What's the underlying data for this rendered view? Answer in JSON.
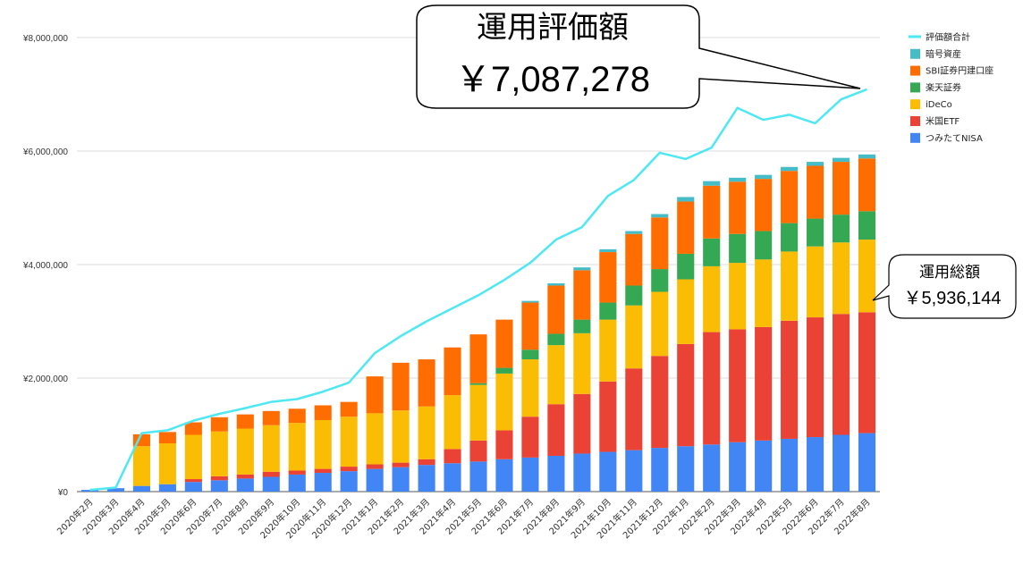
{
  "chart_data": {
    "type": "bar",
    "stacked": true,
    "ylim": [
      0,
      8000000
    ],
    "yticks": [
      "¥0",
      "¥2,000,000",
      "¥4,000,000",
      "¥6,000,000",
      "¥8,000,000"
    ],
    "categories": [
      "2020年2月",
      "2020年3月",
      "2020年4月",
      "2020年5月",
      "2020年6月",
      "2020年7月",
      "2020年8月",
      "2020年9月",
      "2020年10月",
      "2020年11月",
      "2020年12月",
      "2021年1月",
      "2021年2月",
      "2021年3月",
      "2021年4月",
      "2021年5月",
      "2021年6月",
      "2021年7月",
      "2021年8月",
      "2021年9月",
      "2021年10月",
      "2021年11月",
      "2021年12月",
      "2022年1月",
      "2022年2月",
      "2022年3月",
      "2022年4月",
      "2022年5月",
      "2022年6月",
      "2022年7月",
      "2022年8月"
    ],
    "series": [
      {
        "name": "つみたてNISA",
        "color": "#4285f4",
        "values": [
          30000,
          60000,
          100000,
          130000,
          170000,
          200000,
          230000,
          260000,
          300000,
          330000,
          360000,
          400000,
          430000,
          470000,
          500000,
          530000,
          570000,
          600000,
          630000,
          670000,
          700000,
          730000,
          770000,
          800000,
          830000,
          870000,
          900000,
          930000,
          960000,
          1000000,
          1030000
        ]
      },
      {
        "name": "米国ETF",
        "color": "#ea4335",
        "values": [
          0,
          0,
          0,
          0,
          50000,
          70000,
          70000,
          90000,
          70000,
          70000,
          80000,
          80000,
          80000,
          100000,
          250000,
          370000,
          510000,
          720000,
          910000,
          1050000,
          1240000,
          1440000,
          1620000,
          1800000,
          1980000,
          1990000,
          2000000,
          2080000,
          2110000,
          2130000,
          2130000
        ]
      },
      {
        "name": "iDeCo",
        "color": "#fbbc04",
        "values": [
          0,
          0,
          700000,
          720000,
          780000,
          790000,
          810000,
          820000,
          840000,
          860000,
          880000,
          900000,
          920000,
          930000,
          950000,
          980000,
          1000000,
          1010000,
          1040000,
          1070000,
          1090000,
          1110000,
          1130000,
          1140000,
          1160000,
          1170000,
          1190000,
          1220000,
          1250000,
          1260000,
          1280000
        ]
      },
      {
        "name": "楽天証券",
        "color": "#34a853",
        "values": [
          0,
          0,
          0,
          0,
          0,
          0,
          0,
          0,
          0,
          0,
          0,
          0,
          0,
          0,
          0,
          30000,
          100000,
          170000,
          200000,
          240000,
          300000,
          350000,
          400000,
          450000,
          490000,
          510000,
          500000,
          500000,
          490000,
          490000,
          500000
        ]
      },
      {
        "name": "SBI証券円建口座",
        "color": "#ff6d01",
        "values": [
          0,
          0,
          210000,
          200000,
          220000,
          250000,
          250000,
          250000,
          250000,
          260000,
          260000,
          650000,
          840000,
          830000,
          840000,
          860000,
          850000,
          830000,
          850000,
          870000,
          890000,
          910000,
          910000,
          920000,
          930000,
          920000,
          920000,
          920000,
          930000,
          930000,
          930000
        ]
      },
      {
        "name": "暗号資産",
        "color": "#46bdc6",
        "values": [
          0,
          0,
          0,
          0,
          0,
          0,
          0,
          0,
          0,
          0,
          0,
          0,
          0,
          0,
          0,
          0,
          0,
          30000,
          40000,
          50000,
          50000,
          50000,
          60000,
          80000,
          80000,
          70000,
          70000,
          70000,
          70000,
          70000,
          70000
        ]
      },
      {
        "name": "評価額合計",
        "color": "#4fe8f2",
        "type": "line",
        "values": [
          30000,
          70000,
          1030000,
          1080000,
          1250000,
          1370000,
          1470000,
          1580000,
          1630000,
          1760000,
          1920000,
          2440000,
          2740000,
          3000000,
          3230000,
          3460000,
          3730000,
          4030000,
          4440000,
          4660000,
          5210000,
          5490000,
          5970000,
          5860000,
          6060000,
          6760000,
          6550000,
          6640000,
          6490000,
          6910000,
          7087278
        ]
      }
    ],
    "legend": {
      "position": "top-right",
      "order": [
        "評価額合計",
        "暗号資産",
        "SBI証券円建口座",
        "楽天証券",
        "iDeCo",
        "米国ETF",
        "つみたてNISA"
      ]
    }
  },
  "callouts": {
    "valuation": {
      "title": "運用評価額",
      "value": "￥7,087,278"
    },
    "invested": {
      "title": "運用総額",
      "value": "￥5,936,144"
    }
  }
}
